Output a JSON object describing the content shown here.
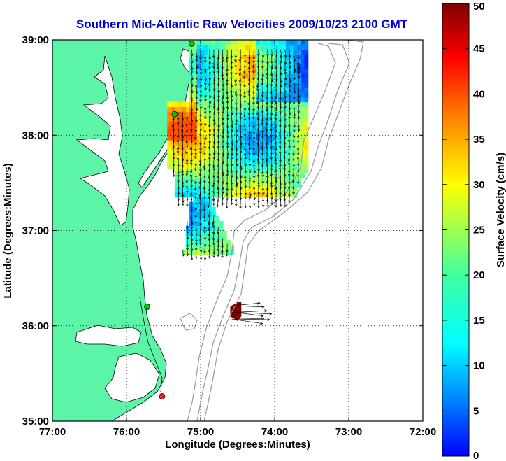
{
  "chart_data": {
    "type": "heatmap",
    "title": "Southern Mid-Atlantic Raw Velocities 2009/10/23 2100 GMT",
    "xlabel": "Longitude (Degrees:Minutes)",
    "ylabel": "Latitude (Degrees:Minutes)",
    "colorbar_label": "Surface Velocity (cm/s)",
    "xlim": [
      -77,
      -72
    ],
    "ylim": [
      35,
      39
    ],
    "clim": [
      0,
      50
    ],
    "grid": true,
    "x_ticks": [
      {
        "value": -77,
        "label": "77:00"
      },
      {
        "value": -76,
        "label": "76:00"
      },
      {
        "value": -75,
        "label": "75:00"
      },
      {
        "value": -74,
        "label": "74:00"
      },
      {
        "value": -73,
        "label": "73:00"
      },
      {
        "value": -72,
        "label": "72:00"
      }
    ],
    "y_ticks": [
      {
        "value": 35,
        "label": "35:00"
      },
      {
        "value": 36,
        "label": "36:00"
      },
      {
        "value": 37,
        "label": "37:00"
      },
      {
        "value": 38,
        "label": "38:00"
      },
      {
        "value": 39,
        "label": "39:00"
      }
    ],
    "colorbar_ticks": [
      0,
      5,
      10,
      15,
      20,
      25,
      30,
      35,
      40,
      45,
      50
    ],
    "colors": {
      "title": "#0000cc",
      "land": "#5cf5a8",
      "coast": "#000000",
      "bathymetry": "#999999",
      "grid": "#000000",
      "arrows": "#000000",
      "stations": [
        "#00cc00",
        "#ff2020"
      ]
    },
    "velocity_field": {
      "main_region": {
        "lon_range": [
          -75.45,
          -73.6
        ],
        "lat_range": [
          36.75,
          38.95
        ],
        "speed_range_cm_s": [
          8,
          40
        ]
      },
      "offshore_patch": {
        "lon_range": [
          -74.6,
          -74.45
        ],
        "lat_range": [
          36.05,
          36.25
        ],
        "speed_cm_s": 50
      }
    },
    "stations": [
      {
        "lon": -75.12,
        "lat": 38.96,
        "color": "green"
      },
      {
        "lon": -75.35,
        "lat": 38.22,
        "color": "green"
      },
      {
        "lon": -75.72,
        "lat": 36.2,
        "color": "green"
      },
      {
        "lon": -75.52,
        "lat": 35.26,
        "color": "red"
      }
    ]
  }
}
